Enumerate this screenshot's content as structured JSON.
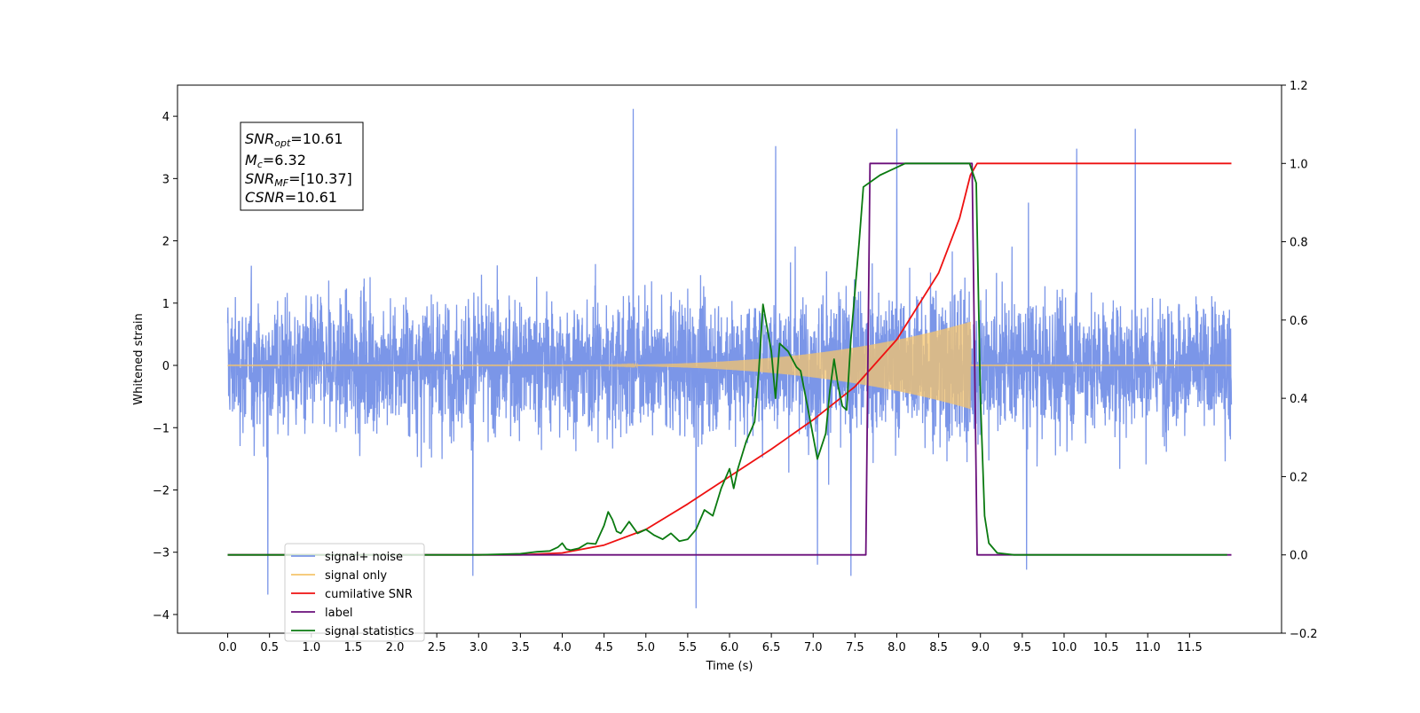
{
  "chart_data": {
    "type": "line",
    "xlabel": "Time (s)",
    "ylabel": "Whitened strain",
    "xlim": [
      -0.6,
      12.6
    ],
    "ylim": [
      -4.3,
      4.5
    ],
    "y2lim": [
      -0.2,
      1.2
    ],
    "x_ticks": [
      0.0,
      0.5,
      1.0,
      1.5,
      2.0,
      2.5,
      3.0,
      3.5,
      4.0,
      4.5,
      5.0,
      5.5,
      6.0,
      6.5,
      7.0,
      7.5,
      8.0,
      8.5,
      9.0,
      9.5,
      10.0,
      10.5,
      11.0,
      11.5
    ],
    "x_tick_labels": [
      "0.0",
      "0.5",
      "1.0",
      "1.5",
      "2.0",
      "2.5",
      "3.0",
      "3.5",
      "4.0",
      "4.5",
      "5.0",
      "5.5",
      "6.0",
      "6.5",
      "7.0",
      "7.5",
      "8.0",
      "8.5",
      "9.0",
      "9.5",
      "10.0",
      "10.5",
      "11.0",
      "11.5"
    ],
    "y_ticks": [
      4,
      3,
      2,
      1,
      0,
      -1,
      -2,
      -3,
      -4
    ],
    "y_tick_labels": [
      "4",
      "3",
      "2",
      "1",
      "0",
      "−1",
      "−2",
      "−3",
      "−4"
    ],
    "y2_ticks": [
      1.2,
      1.0,
      0.8,
      0.6,
      0.4,
      0.2,
      0.0,
      -0.2
    ],
    "y2_tick_labels": [
      "1.2",
      "1.0",
      "0.8",
      "0.6",
      "0.4",
      "0.2",
      "0.0",
      "−0.2"
    ],
    "grid": false,
    "legend_position": "lower-left",
    "annotation": {
      "snr_opt": "=10.61",
      "mc": "=6.32",
      "snr_mf": "=[10.37]",
      "csnr": "=10.61"
    },
    "series": [
      {
        "name": "signal+ noise",
        "color": "#7b96e8",
        "axis": "left",
        "x_range": [
          0.0,
          12.0
        ],
        "envelope_typical": [
          -2.2,
          2.4
        ],
        "spikes": [
          {
            "x": 4.85,
            "y": 4.12
          },
          {
            "x": 8.0,
            "y": 3.8
          },
          {
            "x": 10.85,
            "y": 3.8
          },
          {
            "x": 6.55,
            "y": 3.52
          },
          {
            "x": 10.15,
            "y": 3.48
          },
          {
            "x": 0.48,
            "y": -3.68
          },
          {
            "x": 5.6,
            "y": -3.9
          },
          {
            "x": 2.93,
            "y": -3.38
          },
          {
            "x": 7.45,
            "y": -3.38
          },
          {
            "x": 9.55,
            "y": -3.28
          },
          {
            "x": 7.05,
            "y": -3.2
          }
        ]
      },
      {
        "name": "signal only",
        "color": "#f5c46c",
        "axis": "left",
        "chirp_start": 3.5,
        "chirp_end": 8.88,
        "amplitude_at_end": 0.7
      },
      {
        "name": "cumilative SNR",
        "color": "#ee1111",
        "axis": "right",
        "x": [
          0.0,
          3.5,
          4.0,
          4.5,
          5.0,
          5.5,
          6.0,
          6.5,
          7.0,
          7.5,
          8.0,
          8.5,
          8.75,
          8.88,
          8.96,
          12.0
        ],
        "y": [
          0.0,
          0.0,
          0.005,
          0.025,
          0.065,
          0.13,
          0.2,
          0.27,
          0.345,
          0.43,
          0.55,
          0.72,
          0.86,
          0.97,
          1.0,
          1.0
        ]
      },
      {
        "name": "label",
        "color": "#6a0f7a",
        "axis": "right",
        "x": [
          0.0,
          7.63,
          7.68,
          8.9,
          8.96,
          12.0
        ],
        "y": [
          0.0,
          0.0,
          1.0,
          1.0,
          0.0,
          0.0
        ]
      },
      {
        "name": "signal statistics",
        "color": "#0a7a10",
        "axis": "right",
        "x": [
          0.0,
          3.0,
          3.5,
          3.7,
          3.85,
          3.95,
          4.0,
          4.05,
          4.1,
          4.2,
          4.3,
          4.4,
          4.5,
          4.55,
          4.6,
          4.65,
          4.7,
          4.8,
          4.9,
          5.0,
          5.1,
          5.2,
          5.3,
          5.4,
          5.5,
          5.6,
          5.7,
          5.8,
          5.9,
          6.0,
          6.05,
          6.1,
          6.2,
          6.3,
          6.35,
          6.4,
          6.5,
          6.55,
          6.6,
          6.7,
          6.8,
          6.85,
          6.95,
          7.05,
          7.15,
          7.2,
          7.25,
          7.3,
          7.35,
          7.4,
          7.45,
          7.55,
          7.6,
          7.7,
          7.8,
          7.9,
          8.0,
          8.1,
          8.3,
          8.6,
          8.87,
          8.95,
          9.0,
          9.05,
          9.1,
          9.2,
          9.4,
          11.95
        ],
        "y": [
          0.0,
          0.0,
          0.003,
          0.008,
          0.01,
          0.02,
          0.03,
          0.015,
          0.012,
          0.017,
          0.03,
          0.028,
          0.075,
          0.11,
          0.09,
          0.06,
          0.055,
          0.085,
          0.055,
          0.065,
          0.05,
          0.04,
          0.055,
          0.035,
          0.04,
          0.065,
          0.115,
          0.1,
          0.17,
          0.22,
          0.17,
          0.22,
          0.29,
          0.34,
          0.47,
          0.64,
          0.52,
          0.4,
          0.54,
          0.52,
          0.48,
          0.47,
          0.36,
          0.245,
          0.31,
          0.42,
          0.5,
          0.43,
          0.38,
          0.37,
          0.55,
          0.8,
          0.94,
          0.955,
          0.97,
          0.98,
          0.99,
          1.0,
          1.0,
          1.0,
          1.0,
          0.95,
          0.4,
          0.1,
          0.03,
          0.005,
          0.0,
          0.0
        ]
      }
    ],
    "legend": [
      {
        "label": "signal+ noise",
        "color": "#7b96e8"
      },
      {
        "label": "signal only",
        "color": "#f5c46c"
      },
      {
        "label": "cumilative SNR",
        "color": "#ee1111"
      },
      {
        "label": "label",
        "color": "#6a0f7a"
      },
      {
        "label": "signal statistics",
        "color": "#0a7a10"
      }
    ]
  }
}
